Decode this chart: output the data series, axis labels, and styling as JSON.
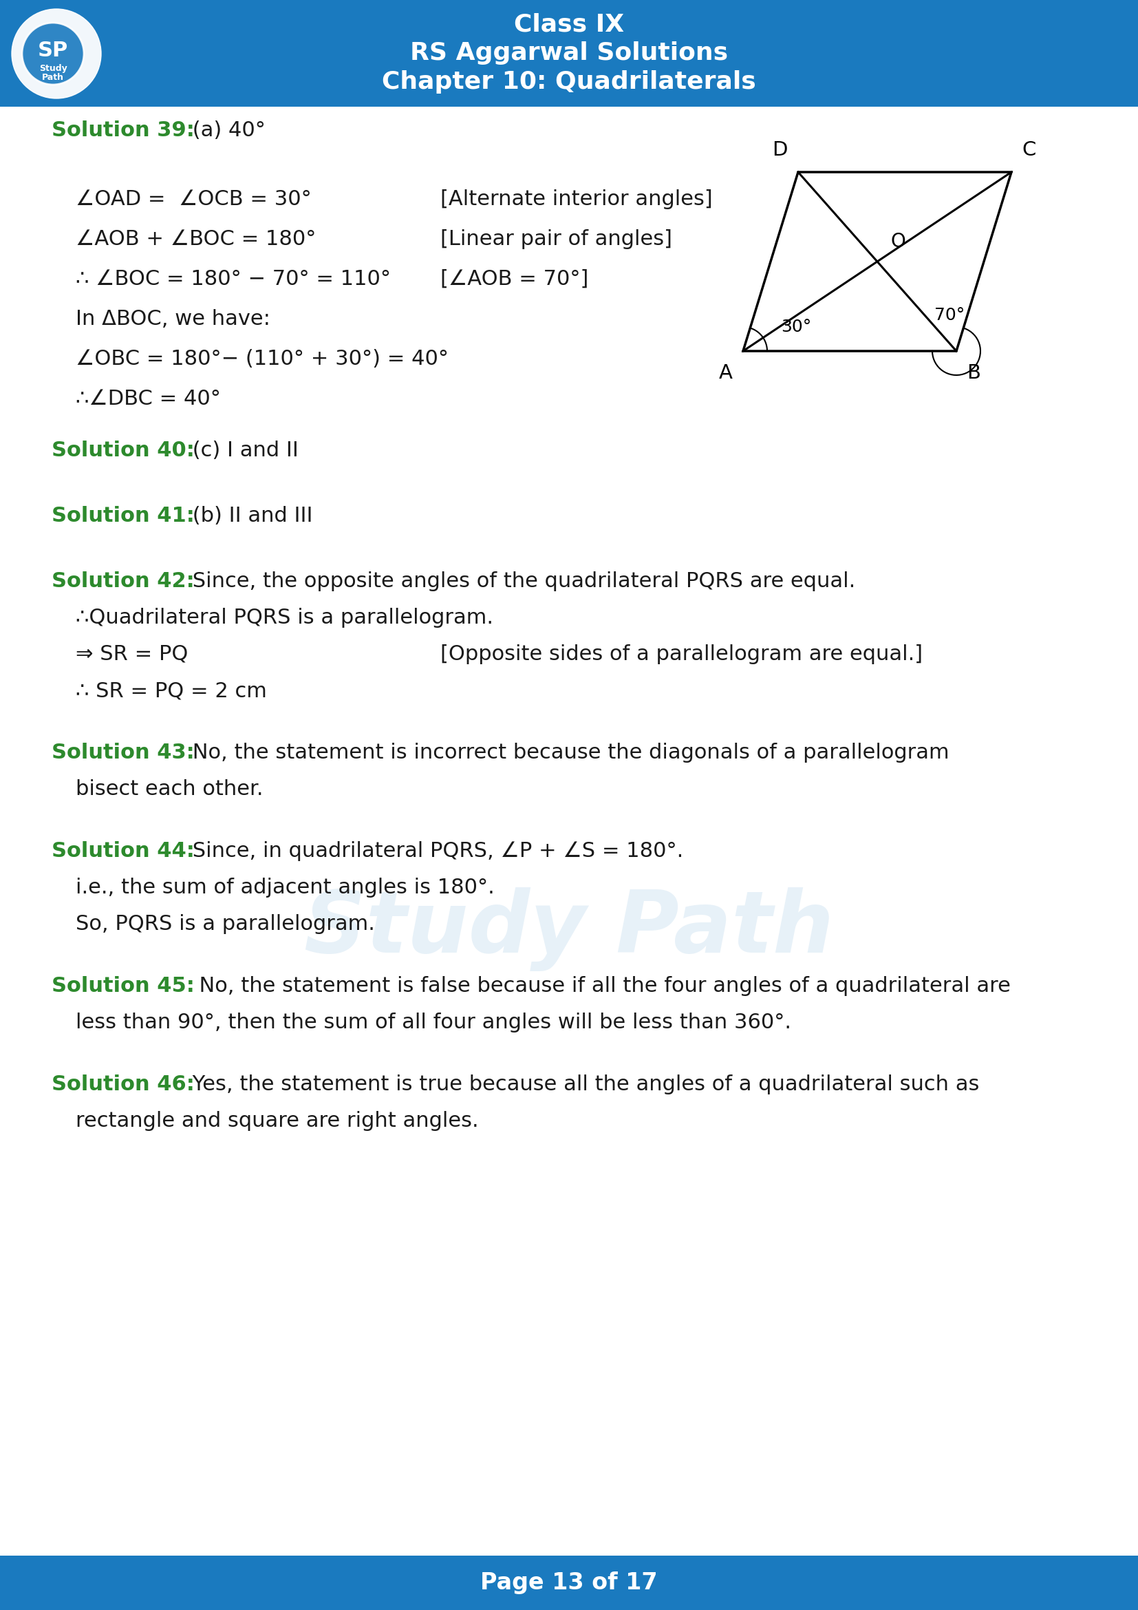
{
  "header_bg_color": "#1a7abf",
  "header_text_color": "#ffffff",
  "footer_bg_color": "#1a7abf",
  "footer_text_color": "#ffffff",
  "page_bg_color": "#ffffff",
  "green_color": "#2d8a2d",
  "black_color": "#1a1a1a",
  "title_line1": "Class IX",
  "title_line2": "RS Aggarwal Solutions",
  "title_line3": "Chapter 10: Quadrilaterals",
  "footer_text": "Page 13 of 17",
  "solution39_label": "Solution 39:",
  "solution39_text": " (a) 40°",
  "sol39_line1_left": "∠OAD =  ∠OCB = 30°",
  "sol39_line1_right": "[Alternate interior angles]",
  "sol39_line2_left": "∠AOB + ∠BOC = 180°",
  "sol39_line2_right": "[Linear pair of angles]",
  "sol39_line3_left": "∴ ∠BOC = 180° − 70° = 110°",
  "sol39_line3_right": "[∠AOB = 70°]",
  "sol39_line4": "In ΔBOC, we have:",
  "sol39_line5": "∠OBC = 180°− (110° + 30°) = 40°",
  "sol39_line6": "∴∠DBC = 40°",
  "solution40_label": "Solution 40:",
  "solution40_text": " (c) I and II",
  "solution41_label": "Solution 41:",
  "solution41_text": " (b) II and III",
  "solution42_label": "Solution 42:",
  "solution42_line1": " Since, the opposite angles of the quadrilateral PQRS are equal.",
  "solution42_line2": "∴Quadrilateral PQRS is a parallelogram.",
  "solution42_line3_left": "⇒ SR = PQ",
  "solution42_line3_right": "[Opposite sides of a parallelogram are equal.]",
  "solution42_line4": "∴ SR = PQ = 2 cm",
  "solution43_label": "Solution 43:",
  "solution43_text": " No, the statement is incorrect because the diagonals of a parallelogram",
  "solution43_text2": "bisect each other.",
  "solution44_label": "Solution 44:",
  "solution44_line1": " Since, in quadrilateral PQRS, ∠P + ∠S = 180°.",
  "solution44_line2": "i.e., the sum of adjacent angles is 180°.",
  "solution44_line3": "So, PQRS is a parallelogram.",
  "solution45_label": "Solution 45:",
  "solution45_text": "  No, the statement is false because if all the four angles of a quadrilateral are",
  "solution45_text2": "less than 90°, then the sum of all four angles will be less than 360°.",
  "solution46_label": "Solution 46:",
  "solution46_text": " Yes, the statement is true because all the angles of a quadrilateral such as",
  "solution46_text2": "rectangle and square are right angles.",
  "watermark_text": "Study Path",
  "watermark_color": "#1a7abf",
  "watermark_alpha": 0.1
}
